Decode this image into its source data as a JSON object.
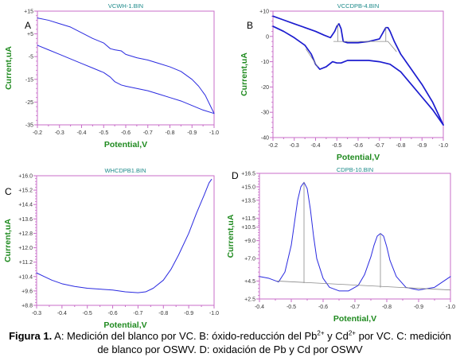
{
  "colors": {
    "axis": "#c86ec8",
    "title": "#1d8a8a",
    "axis_label": "#1f8a1f",
    "curve": "#2a2ae0",
    "curve_bold": "#1c1ccf",
    "baseline": "#8a8a8a"
  },
  "caption": {
    "label": "Figura 1.",
    "text_1": " A: Medición del blanco por VC. B: óxido-reducción del Pb",
    "sup_1": "2+",
    "text_2": " y Cd",
    "sup_2": "2+",
    "text_3": " por VC. C: medición de blanco por OSWV. D: oxidación de Pb y Cd por OSWV"
  },
  "chart_data": [
    {
      "panel_letter": "A",
      "type": "line",
      "title": "VCWH-1.BIN",
      "xlabel": "Potential,V",
      "ylabel": "Current,uA",
      "xlim": [
        -0.2,
        -1.0
      ],
      "ylim": [
        -35,
        15
      ],
      "x_ticks": [
        "-0.2",
        "-0.3",
        "-0.4",
        "-0.5",
        "-0.6",
        "-0.7",
        "-0.8",
        "-0.9",
        "-1.0"
      ],
      "x_tick_values": [
        -0.2,
        -0.3,
        -0.4,
        -0.5,
        -0.6,
        -0.7,
        -0.8,
        -0.9,
        -1.0
      ],
      "y_ticks": [
        "+15",
        "+5",
        "-5",
        "-15",
        "-25",
        "-35"
      ],
      "y_tick_values": [
        15,
        5,
        -5,
        -15,
        -25,
        -35
      ],
      "series": [
        {
          "style": "curve",
          "x": [
            -0.2,
            -0.25,
            -0.3,
            -0.35,
            -0.4,
            -0.45,
            -0.5,
            -0.53,
            -0.55,
            -0.58,
            -0.6,
            -0.65,
            -0.7,
            -0.75,
            -0.8,
            -0.85,
            -0.9,
            -0.93,
            -0.96,
            -0.98,
            -1.0
          ],
          "y": [
            12,
            11,
            9.5,
            8,
            5.5,
            3,
            1,
            -1.5,
            -2,
            -2.5,
            -4,
            -5.5,
            -6.5,
            -8,
            -9.5,
            -11.5,
            -15,
            -18,
            -22,
            -26,
            -30
          ]
        },
        {
          "style": "curve",
          "x": [
            -0.2,
            -0.25,
            -0.3,
            -0.35,
            -0.4,
            -0.45,
            -0.5,
            -0.53,
            -0.55,
            -0.58,
            -0.6,
            -0.65,
            -0.7,
            -0.75,
            -0.8,
            -0.85,
            -0.9,
            -0.95,
            -1.0
          ],
          "y": [
            0,
            -2,
            -4,
            -6,
            -8,
            -10,
            -12,
            -14,
            -16,
            -17.5,
            -18,
            -19,
            -20,
            -21.5,
            -23,
            -24.5,
            -26.5,
            -28.5,
            -30
          ]
        }
      ]
    },
    {
      "panel_letter": "B",
      "type": "line",
      "title": "VCCDPB-4.BIN",
      "xlabel": "Potential,V",
      "ylabel": "Current,uA",
      "xlim": [
        -0.2,
        -1.0
      ],
      "ylim": [
        -40,
        10
      ],
      "x_ticks": [
        "-0.2",
        "-0.3",
        "-0.4",
        "-0.5",
        "-0.6",
        "-0.7",
        "-0.8",
        "-0.9",
        "-1.0"
      ],
      "x_tick_values": [
        -0.2,
        -0.3,
        -0.4,
        -0.5,
        -0.6,
        -0.7,
        -0.8,
        -0.9,
        -1.0
      ],
      "y_ticks": [
        "+10",
        "0",
        "-10",
        "-20",
        "-30",
        "-40"
      ],
      "y_tick_values": [
        10,
        0,
        -10,
        -20,
        -30,
        -40
      ],
      "series": [
        {
          "style": "curve_bold",
          "x": [
            -0.2,
            -0.25,
            -0.3,
            -0.35,
            -0.4,
            -0.44,
            -0.47,
            -0.49,
            -0.5,
            -0.51,
            -0.52,
            -0.53,
            -0.55,
            -0.6,
            -0.65,
            -0.7,
            -0.72,
            -0.73,
            -0.74,
            -0.75,
            -0.77,
            -0.8,
            -0.85,
            -0.9,
            -0.95,
            -1.0
          ],
          "y": [
            8,
            6.5,
            5,
            3.5,
            2,
            0.5,
            -0.5,
            2,
            4,
            5,
            3,
            -2,
            -2.5,
            -2.5,
            -2,
            -1,
            2,
            3.5,
            3.5,
            2,
            -2,
            -7,
            -13,
            -19,
            -26,
            -35
          ]
        },
        {
          "style": "curve_bold",
          "x": [
            -0.2,
            -0.25,
            -0.3,
            -0.35,
            -0.38,
            -0.4,
            -0.42,
            -0.45,
            -0.48,
            -0.5,
            -0.52,
            -0.55,
            -0.6,
            -0.65,
            -0.7,
            -0.75,
            -0.8,
            -0.85,
            -0.9,
            -0.95,
            -1.0
          ],
          "y": [
            4,
            2,
            -0.5,
            -3.5,
            -7,
            -11,
            -13,
            -12,
            -10,
            -10.5,
            -10.5,
            -9.5,
            -9.5,
            -9.5,
            -10,
            -11,
            -14,
            -19,
            -24,
            -29,
            -35
          ]
        },
        {
          "style": "baseline",
          "x": [
            -0.355,
            -0.41
          ],
          "y": [
            -5,
            -12
          ]
        },
        {
          "style": "baseline",
          "x": [
            -0.485,
            -0.74
          ],
          "y": [
            -2,
            -2
          ]
        },
        {
          "style": "baseline",
          "x": [
            -0.505,
            -0.505
          ],
          "y": [
            5,
            -2
          ]
        },
        {
          "style": "baseline",
          "x": [
            -0.73,
            -0.73
          ],
          "y": [
            3.5,
            -2
          ]
        },
        {
          "style": "baseline",
          "x": [
            -0.74,
            -0.78
          ],
          "y": [
            -2,
            -6
          ]
        }
      ]
    },
    {
      "panel_letter": "C",
      "type": "line",
      "title": "WHCDPB1.BIN",
      "xlabel": "Potential,V",
      "ylabel": "Current,uA",
      "xlim": [
        -0.3,
        -1.0
      ],
      "ylim": [
        8.8,
        16.0
      ],
      "x_ticks": [
        "-0.3",
        "-0.4",
        "-0.5",
        "-0.6",
        "-0.7",
        "-0.8",
        "-0.9",
        "-1.0"
      ],
      "x_tick_values": [
        -0.3,
        -0.4,
        -0.5,
        -0.6,
        -0.7,
        -0.8,
        -0.9,
        -1.0
      ],
      "y_ticks": [
        "+8.8",
        "+9.6",
        "+10.4",
        "+11.2",
        "+12.0",
        "+12.8",
        "+13.6",
        "+14.4",
        "+15.2",
        "+16.0"
      ],
      "y_tick_values": [
        8.8,
        9.6,
        10.4,
        11.2,
        12.0,
        12.8,
        13.6,
        14.4,
        15.2,
        16.0
      ],
      "series": [
        {
          "style": "curve",
          "x": [
            -0.3,
            -0.33,
            -0.36,
            -0.4,
            -0.45,
            -0.5,
            -0.55,
            -0.6,
            -0.65,
            -0.7,
            -0.73,
            -0.76,
            -0.8,
            -0.83,
            -0.86,
            -0.9,
            -0.93,
            -0.96,
            -0.98,
            -0.99
          ],
          "y": [
            10.6,
            10.4,
            10.2,
            10.0,
            9.85,
            9.75,
            9.7,
            9.65,
            9.55,
            9.5,
            9.55,
            9.75,
            10.2,
            10.8,
            11.6,
            12.8,
            13.9,
            14.9,
            15.6,
            15.8
          ]
        }
      ]
    },
    {
      "panel_letter": "D",
      "type": "line",
      "title": "CDPB-10.BIN",
      "xlabel": "Potential,V",
      "ylabel": "Current,uA",
      "xlim": [
        -0.4,
        -1.0
      ],
      "ylim": [
        2.5,
        16.5
      ],
      "x_ticks": [
        "-0.4",
        "-0.5",
        "-0.6",
        "-0.7",
        "-0.8",
        "-0.9",
        "-1.0"
      ],
      "x_tick_values": [
        -0.4,
        -0.5,
        -0.6,
        -0.7,
        -0.8,
        -0.9,
        -1.0
      ],
      "y_ticks": [
        "+2.5",
        "+4.5",
        "+7.0",
        "+9.0",
        "+10.5",
        "+11.5",
        "+13.5",
        "+15.0",
        "+16.5"
      ],
      "y_tick_values": [
        2.5,
        4.5,
        7.0,
        9.0,
        10.5,
        11.5,
        13.5,
        15.0,
        16.5
      ],
      "series": [
        {
          "style": "curve",
          "x": [
            -0.4,
            -0.43,
            -0.46,
            -0.48,
            -0.5,
            -0.51,
            -0.52,
            -0.53,
            -0.54,
            -0.55,
            -0.56,
            -0.57,
            -0.58,
            -0.6,
            -0.62,
            -0.65,
            -0.68,
            -0.71,
            -0.73,
            -0.75,
            -0.76,
            -0.77,
            -0.78,
            -0.79,
            -0.8,
            -0.81,
            -0.83,
            -0.86,
            -0.9,
            -0.95,
            -1.0
          ],
          "y": [
            5.0,
            4.8,
            4.4,
            5.5,
            8.5,
            11.0,
            13.5,
            15.0,
            15.5,
            14.8,
            12.5,
            9.5,
            7.0,
            4.8,
            3.8,
            3.4,
            3.4,
            4.0,
            5.2,
            7.2,
            8.5,
            9.5,
            9.8,
            9.5,
            8.3,
            6.8,
            5.0,
            3.8,
            3.5,
            3.8,
            5.0
          ]
        },
        {
          "style": "baseline",
          "x": [
            -0.455,
            -1.0
          ],
          "y": [
            4.5,
            3.5
          ]
        },
        {
          "style": "baseline",
          "x": [
            -0.54,
            -0.54
          ],
          "y": [
            15.5,
            4.3
          ]
        },
        {
          "style": "baseline",
          "x": [
            -0.78,
            -0.78
          ],
          "y": [
            9.8,
            3.8
          ]
        }
      ]
    }
  ]
}
